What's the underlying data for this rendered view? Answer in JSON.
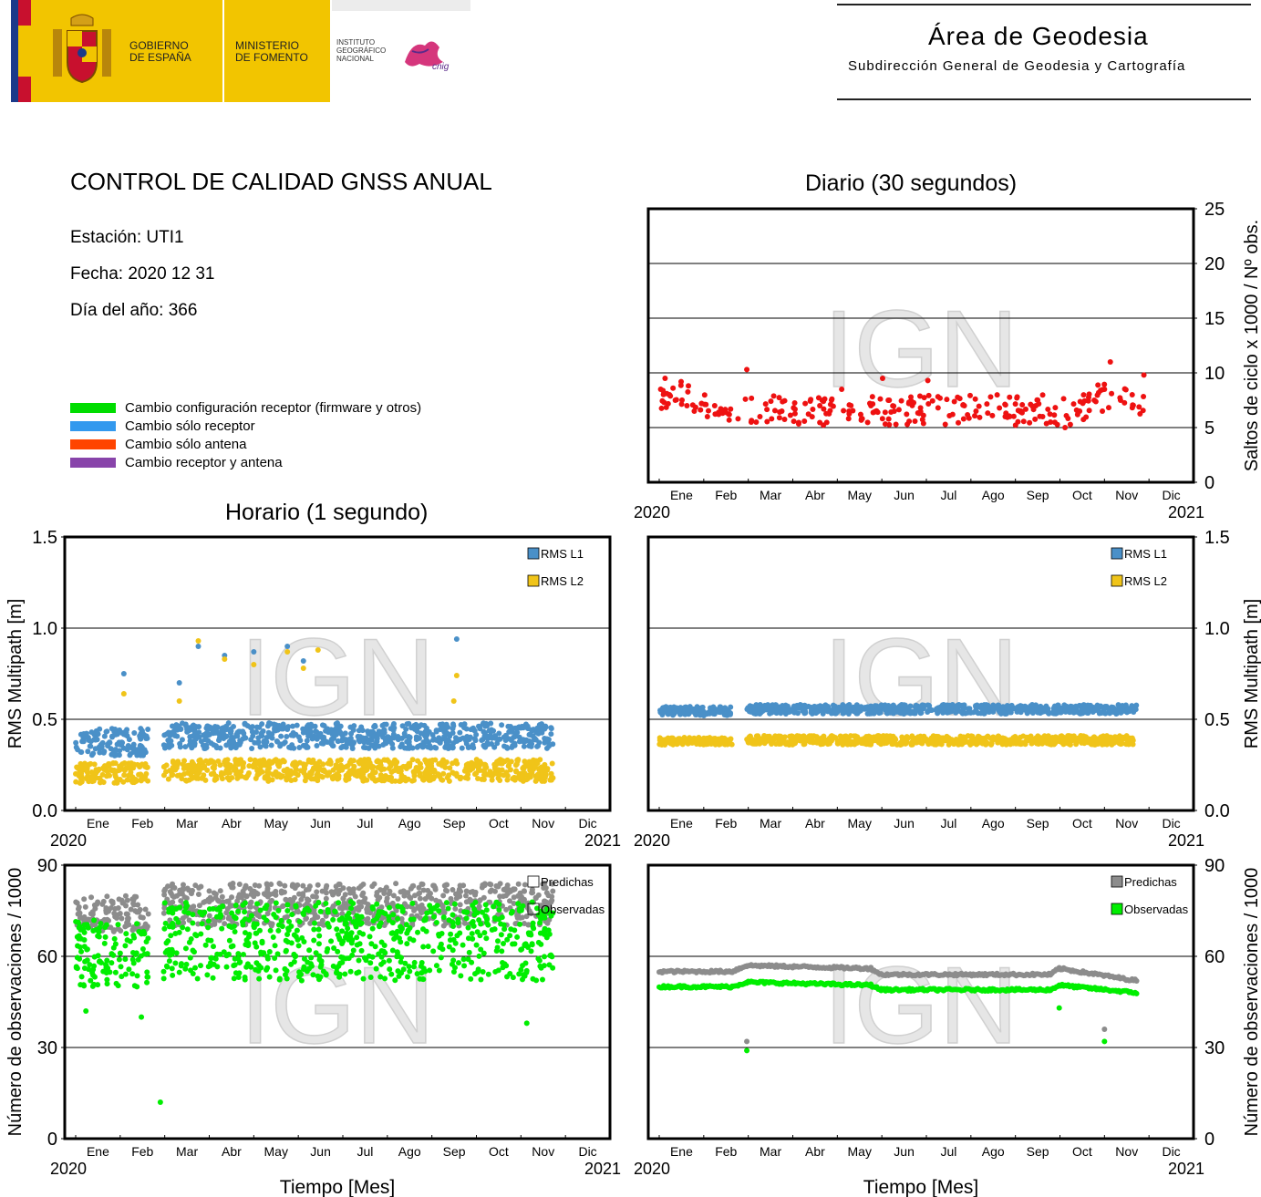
{
  "header": {
    "gobierno": [
      "GOBIERNO",
      "DE ESPAÑA"
    ],
    "ministerio": [
      "MINISTERIO",
      "DE FOMENTO"
    ],
    "instituto": [
      "INSTITUTO",
      "GEOGRÁFICO",
      "NACIONAL"
    ],
    "cnig": "cnig",
    "area_title": "Área de Geodesia",
    "area_subtitle": "Subdirección General de Geodesia y Cartografía"
  },
  "info": {
    "title": "CONTROL DE CALIDAD GNSS ANUAL",
    "station": "Estación: UTI1",
    "date": "Fecha: 2020 12 31",
    "doy": "Día del año: 366"
  },
  "legend": [
    {
      "label": "Cambio configuración receptor (firmware y otros)",
      "color": "#00dd00"
    },
    {
      "label": "Cambio sólo receptor",
      "color": "#3399ee"
    },
    {
      "label": "Cambio sólo antena",
      "color": "#ff4400"
    },
    {
      "label": "Cambio receptor y antena",
      "color": "#8844aa"
    }
  ],
  "watermark": "IGN",
  "titles": {
    "daily": "Diario (30 segundos)",
    "hourly": "Horario (1 segundo)"
  },
  "axis": {
    "months": [
      "Ene",
      "Feb",
      "Mar",
      "Abr",
      "May",
      "Jun",
      "Jul",
      "Ago",
      "Sep",
      "Oct",
      "Nov",
      "Dic"
    ],
    "year_start": "2020",
    "year_end": "2021",
    "xlabel": "Tiempo [Mes]"
  },
  "chart_data": [
    {
      "id": "daily-cycle-slips",
      "type": "scatter",
      "title": "Diario (30 segundos)",
      "ylabel": "Saltos de ciclo x 1000 / Nº obs.",
      "ylim": [
        0,
        25
      ],
      "yticks": [
        "0",
        "5",
        "10",
        "15",
        "20",
        "25"
      ],
      "grid": true,
      "series": [
        {
          "color": "#ee1111",
          "x_start": "2020-01-01",
          "x_end": "2020-12-31",
          "description_points": [
            [
              "2020-01-02",
              8.5
            ],
            [
              "2020-01-05",
              9.5
            ],
            [
              "2020-01-08",
              8.0
            ],
            [
              "2020-01-12",
              7.5
            ],
            [
              "2020-01-16",
              9.2
            ],
            [
              "2020-01-20",
              7.0
            ],
            [
              "2020-01-25",
              6.5
            ],
            [
              "2020-01-30",
              7.2
            ],
            [
              "2020-02-03",
              6.0
            ],
            [
              "2020-02-08",
              7.0
            ],
            [
              "2020-02-13",
              6.5
            ],
            [
              "2020-02-18",
              6.2
            ],
            [
              "2020-02-24",
              5.8
            ],
            [
              "2020-03-01",
              10.3
            ],
            [
              "2020-03-04",
              5.5
            ],
            [
              "2020-03-10",
              6.0
            ],
            [
              "2020-03-18",
              5.8
            ],
            [
              "2020-03-25",
              6.5
            ],
            [
              "2020-04-02",
              6.8
            ],
            [
              "2020-04-10",
              7.2
            ],
            [
              "2020-04-20",
              7.0
            ],
            [
              "2020-04-28",
              7.5
            ],
            [
              "2020-05-05",
              8.5
            ],
            [
              "2020-05-10",
              6.5
            ],
            [
              "2020-05-18",
              6.2
            ],
            [
              "2020-05-25",
              7.0
            ],
            [
              "2020-06-02",
              9.5
            ],
            [
              "2020-06-10",
              6.5
            ],
            [
              "2020-06-20",
              7.2
            ],
            [
              "2020-06-28",
              6.8
            ],
            [
              "2020-07-03",
              9.3
            ],
            [
              "2020-07-10",
              6.8
            ],
            [
              "2020-07-20",
              6.2
            ],
            [
              "2020-07-28",
              7.0
            ],
            [
              "2020-08-05",
              6.5
            ],
            [
              "2020-08-15",
              7.8
            ],
            [
              "2020-08-25",
              6.0
            ],
            [
              "2020-09-05",
              6.5
            ],
            [
              "2020-09-15",
              7.0
            ],
            [
              "2020-09-25",
              5.5
            ],
            [
              "2020-10-05",
              5.0
            ],
            [
              "2020-10-15",
              6.5
            ],
            [
              "2020-10-25",
              7.5
            ],
            [
              "2020-11-01",
              8.5
            ],
            [
              "2020-11-05",
              11.0
            ],
            [
              "2020-11-12",
              7.5
            ],
            [
              "2020-11-20",
              8.0
            ],
            [
              "2020-11-28",
              9.8
            ]
          ]
        }
      ]
    },
    {
      "id": "hourly-multipath",
      "type": "scatter",
      "ylabel": "RMS Multipath [m]",
      "ylim": [
        0,
        1.5
      ],
      "yticks": [
        "0.0",
        "0.5",
        "1.0",
        "1.5"
      ],
      "grid": true,
      "legend": [
        {
          "name": "RMS L1",
          "color": "#4a90c8"
        },
        {
          "name": "RMS L2",
          "color": "#f0c419"
        }
      ],
      "bands": [
        {
          "series": "RMS L1",
          "from": "2020-01-01",
          "to": "2020-02-20",
          "low": 0.3,
          "high": 0.45
        },
        {
          "series": "RMS L1",
          "from": "2020-03-01",
          "to": "2020-11-23",
          "low": 0.34,
          "high": 0.48
        },
        {
          "series": "RMS L2",
          "from": "2020-01-01",
          "to": "2020-02-20",
          "low": 0.15,
          "high": 0.26
        },
        {
          "series": "RMS L2",
          "from": "2020-03-01",
          "to": "2020-11-23",
          "low": 0.16,
          "high": 0.28
        }
      ],
      "outliers": [
        {
          "series": "RMS L1",
          "x": "2020-02-03",
          "y": 0.75
        },
        {
          "series": "RMS L2",
          "x": "2020-02-03",
          "y": 0.64
        },
        {
          "series": "RMS L1",
          "x": "2020-03-12",
          "y": 0.7
        },
        {
          "series": "RMS L2",
          "x": "2020-03-12",
          "y": 0.6
        },
        {
          "series": "RMS L1",
          "x": "2020-03-25",
          "y": 0.9
        },
        {
          "series": "RMS L2",
          "x": "2020-03-25",
          "y": 0.93
        },
        {
          "series": "RMS L1",
          "x": "2020-04-12",
          "y": 0.85
        },
        {
          "series": "RMS L2",
          "x": "2020-04-12",
          "y": 0.83
        },
        {
          "series": "RMS L1",
          "x": "2020-05-02",
          "y": 0.87
        },
        {
          "series": "RMS L2",
          "x": "2020-05-02",
          "y": 0.8
        },
        {
          "series": "RMS L1",
          "x": "2020-05-25",
          "y": 0.9
        },
        {
          "series": "RMS L2",
          "x": "2020-05-25",
          "y": 0.87
        },
        {
          "series": "RMS L1",
          "x": "2020-06-05",
          "y": 0.82
        },
        {
          "series": "RMS L2",
          "x": "2020-06-05",
          "y": 0.78
        },
        {
          "series": "RMS L2",
          "x": "2020-06-15",
          "y": 0.88
        },
        {
          "series": "RMS L1",
          "x": "2020-09-18",
          "y": 0.94
        },
        {
          "series": "RMS L2",
          "x": "2020-09-18",
          "y": 0.74
        },
        {
          "series": "RMS L2",
          "x": "2020-09-16",
          "y": 0.6
        }
      ]
    },
    {
      "id": "daily-multipath",
      "type": "scatter",
      "ylabel": "RMS Multipath [m]",
      "ylim": [
        0,
        1.5
      ],
      "yticks": [
        "0.0",
        "0.5",
        "1.0",
        "1.5"
      ],
      "grid": true,
      "legend": [
        {
          "name": "RMS L1",
          "color": "#4a90c8"
        },
        {
          "name": "RMS L2",
          "color": "#f0c419"
        }
      ],
      "bands": [
        {
          "series": "RMS L1",
          "from": "2020-01-01",
          "to": "2020-02-20",
          "low": 0.52,
          "high": 0.57
        },
        {
          "series": "RMS L1",
          "from": "2020-03-01",
          "to": "2020-11-23",
          "low": 0.53,
          "high": 0.58
        },
        {
          "series": "RMS L2",
          "from": "2020-01-01",
          "to": "2020-02-20",
          "low": 0.36,
          "high": 0.4
        },
        {
          "series": "RMS L2",
          "from": "2020-03-01",
          "to": "2020-11-23",
          "low": 0.36,
          "high": 0.41
        }
      ]
    },
    {
      "id": "hourly-observations",
      "type": "scatter",
      "ylabel": "Número de observaciones / 1000",
      "ylim": [
        0,
        90
      ],
      "yticks": [
        "0",
        "30",
        "60",
        "90"
      ],
      "grid": true,
      "legend": [
        {
          "name": "Predichas",
          "color": "#8c8c8c"
        },
        {
          "name": "Observadas",
          "color": "#00ee00"
        }
      ],
      "bands": [
        {
          "series": "Predichas",
          "from": "2020-01-01",
          "to": "2020-02-20",
          "low": 68,
          "high": 80
        },
        {
          "series": "Predichas",
          "from": "2020-03-01",
          "to": "2020-11-23",
          "low": 70,
          "high": 84
        },
        {
          "series": "Observadas",
          "from": "2020-01-01",
          "to": "2020-02-20",
          "low": 50,
          "high": 72
        },
        {
          "series": "Observadas",
          "from": "2020-03-01",
          "to": "2020-11-23",
          "low": 52,
          "high": 78
        }
      ],
      "outliers": [
        {
          "series": "Observadas",
          "x": "2020-02-28",
          "y": 12
        },
        {
          "series": "Observadas",
          "x": "2020-11-05",
          "y": 38
        },
        {
          "series": "Observadas",
          "x": "2020-01-08",
          "y": 42
        },
        {
          "series": "Observadas",
          "x": "2020-02-15",
          "y": 40
        }
      ]
    },
    {
      "id": "daily-observations",
      "type": "scatter",
      "ylabel": "Número de observaciones / 1000",
      "ylim": [
        0,
        90
      ],
      "yticks": [
        "0",
        "30",
        "60",
        "90"
      ],
      "grid": true,
      "legend": [
        {
          "name": "Predichas",
          "color": "#8c8c8c"
        },
        {
          "name": "Observadas",
          "color": "#00ee00"
        }
      ],
      "lines": [
        {
          "series": "Predichas",
          "pts": [
            [
              "2020-01-01",
              55
            ],
            [
              "2020-02-20",
              55
            ],
            [
              "2020-03-01",
              57
            ],
            [
              "2020-05-25",
              56
            ],
            [
              "2020-06-01",
              54
            ],
            [
              "2020-09-25",
              54
            ],
            [
              "2020-10-01",
              56
            ],
            [
              "2020-11-23",
              52
            ]
          ]
        },
        {
          "series": "Observadas",
          "pts": [
            [
              "2020-01-01",
              50
            ],
            [
              "2020-02-20",
              50
            ],
            [
              "2020-03-01",
              51.5
            ],
            [
              "2020-05-25",
              50.5
            ],
            [
              "2020-06-01",
              49
            ],
            [
              "2020-09-25",
              49
            ],
            [
              "2020-10-01",
              50.5
            ],
            [
              "2020-11-23",
              48
            ]
          ]
        }
      ],
      "outliers": [
        {
          "series": "Predichas",
          "x": "2020-03-01",
          "y": 32
        },
        {
          "series": "Observadas",
          "x": "2020-03-01",
          "y": 29
        },
        {
          "series": "Observadas",
          "x": "2020-10-01",
          "y": 43
        },
        {
          "series": "Predichas",
          "x": "2020-11-01",
          "y": 36
        },
        {
          "series": "Observadas",
          "x": "2020-11-01",
          "y": 32
        }
      ]
    }
  ]
}
